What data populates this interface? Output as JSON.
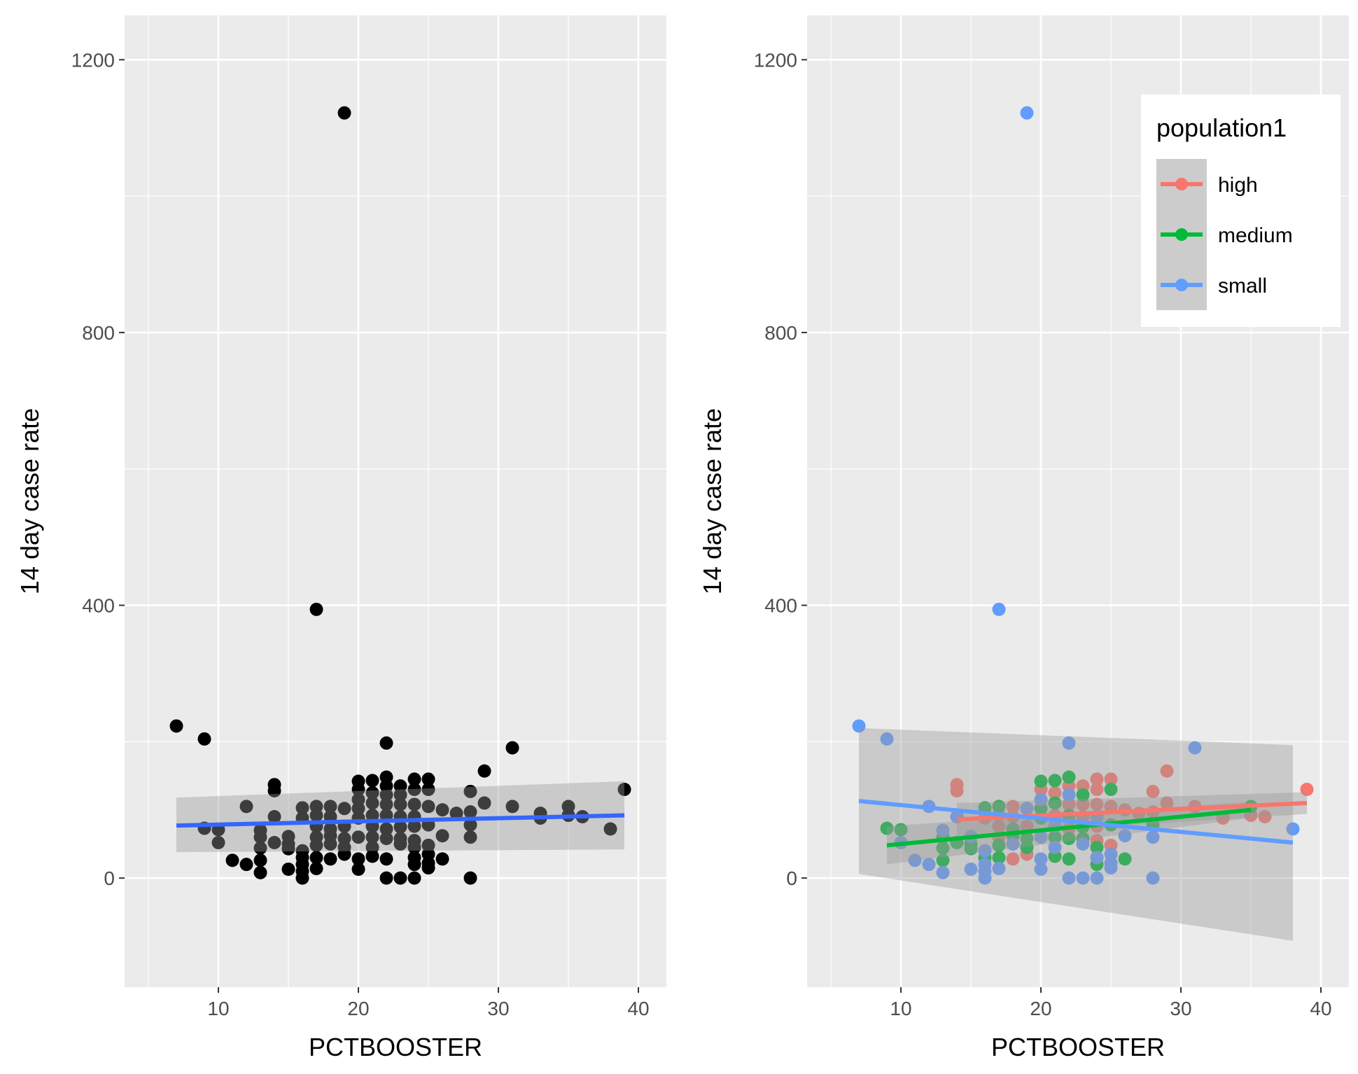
{
  "chart_data": [
    {
      "type": "scatter",
      "xlabel": "PCTBOOSTER",
      "ylabel": "14 day case rate",
      "xlim": [
        3.3,
        42
      ],
      "ylim": [
        -160,
        1265
      ],
      "x_ticks": [
        "10",
        "20",
        "30",
        "40"
      ],
      "y_ticks": [
        "0",
        "400",
        "800",
        "1200"
      ],
      "colors": {
        "points": "#000000",
        "line": "#3366FF",
        "band": "#999999",
        "panel": "#EBEBEB"
      },
      "series": [
        {
          "points": [
            [
              7,
              223
            ],
            [
              9,
              204
            ],
            [
              9,
              73
            ],
            [
              10,
              71
            ],
            [
              10,
              52
            ],
            [
              11,
              26
            ],
            [
              12,
              20
            ],
            [
              12,
              105
            ],
            [
              13,
              8
            ],
            [
              13,
              26
            ],
            [
              13,
              44
            ],
            [
              13,
              60
            ],
            [
              13,
              70
            ],
            [
              14,
              52
            ],
            [
              14,
              90
            ],
            [
              14,
              128
            ],
            [
              14,
              137
            ],
            [
              15,
              13
            ],
            [
              15,
              43
            ],
            [
              15,
              50
            ],
            [
              15,
              61
            ],
            [
              16,
              0
            ],
            [
              16,
              10
            ],
            [
              16,
              20
            ],
            [
              16,
              30
            ],
            [
              16,
              40
            ],
            [
              16,
              88
            ],
            [
              16,
              103
            ],
            [
              17,
              14
            ],
            [
              17,
              30
            ],
            [
              17,
              48
            ],
            [
              17,
              60
            ],
            [
              17,
              76
            ],
            [
              17,
              92
            ],
            [
              17,
              105
            ],
            [
              17,
              394
            ],
            [
              18,
              28
            ],
            [
              18,
              50
            ],
            [
              18,
              62
            ],
            [
              18,
              72
            ],
            [
              18,
              90
            ],
            [
              18,
              105
            ],
            [
              19,
              35
            ],
            [
              19,
              45
            ],
            [
              19,
              58
            ],
            [
              19,
              76
            ],
            [
              19,
              102
            ],
            [
              19,
              1122
            ],
            [
              20,
              13
            ],
            [
              20,
              28
            ],
            [
              20,
              60
            ],
            [
              20,
              88
            ],
            [
              20,
              102
            ],
            [
              20,
              115
            ],
            [
              20,
              130
            ],
            [
              20,
              142
            ],
            [
              21,
              32
            ],
            [
              21,
              45
            ],
            [
              21,
              60
            ],
            [
              21,
              76
            ],
            [
              21,
              92
            ],
            [
              21,
              110
            ],
            [
              21,
              125
            ],
            [
              21,
              143
            ],
            [
              22,
              0
            ],
            [
              22,
              28
            ],
            [
              22,
              58
            ],
            [
              22,
              72
            ],
            [
              22,
              92
            ],
            [
              22,
              108
            ],
            [
              22,
              122
            ],
            [
              22,
              135
            ],
            [
              22,
              148
            ],
            [
              22,
              198
            ],
            [
              23,
              0
            ],
            [
              23,
              50
            ],
            [
              23,
              58
            ],
            [
              23,
              75
            ],
            [
              23,
              90
            ],
            [
              23,
              108
            ],
            [
              23,
              122
            ],
            [
              23,
              135
            ],
            [
              24,
              0
            ],
            [
              24,
              20
            ],
            [
              24,
              30
            ],
            [
              24,
              45
            ],
            [
              24,
              55
            ],
            [
              24,
              76
            ],
            [
              24,
              90
            ],
            [
              24,
              108
            ],
            [
              24,
              130
            ],
            [
              24,
              145
            ],
            [
              25,
              15
            ],
            [
              25,
              22
            ],
            [
              25,
              35
            ],
            [
              25,
              48
            ],
            [
              25,
              78
            ],
            [
              25,
              105
            ],
            [
              25,
              130
            ],
            [
              25,
              145
            ],
            [
              26,
              28
            ],
            [
              26,
              62
            ],
            [
              26,
              100
            ],
            [
              27,
              95
            ],
            [
              28,
              0
            ],
            [
              28,
              60
            ],
            [
              28,
              78
            ],
            [
              28,
              97
            ],
            [
              28,
              127
            ],
            [
              29,
              110
            ],
            [
              29,
              157
            ],
            [
              31,
              105
            ],
            [
              31,
              191
            ],
            [
              33,
              88
            ],
            [
              33,
              95
            ],
            [
              35,
              92
            ],
            [
              35,
              105
            ],
            [
              36,
              90
            ],
            [
              38,
              72
            ],
            [
              39,
              130
            ]
          ]
        }
      ],
      "trend_lines": [
        {
          "x": [
            7,
            39
          ],
          "y": [
            77,
            92
          ],
          "band_upper": [
            118,
            142
          ],
          "band_lower": [
            38,
            42
          ],
          "color": "#3366FF"
        }
      ]
    },
    {
      "type": "scatter",
      "xlabel": "PCTBOOSTER",
      "ylabel": "14 day case rate",
      "xlim": [
        3.3,
        42
      ],
      "ylim": [
        -160,
        1265
      ],
      "x_ticks": [
        "10",
        "20",
        "30",
        "40"
      ],
      "y_ticks": [
        "0",
        "400",
        "800",
        "1200"
      ],
      "legend": {
        "title": "population1",
        "position": "top-right"
      },
      "colors": {
        "band": "#999999",
        "panel": "#EBEBEB"
      },
      "series": [
        {
          "name": "high",
          "color": "#F8766D",
          "points": [
            [
              14,
              128
            ],
            [
              14,
              137
            ],
            [
              14,
              90
            ],
            [
              15,
              60
            ],
            [
              16,
              88
            ],
            [
              17,
              76
            ],
            [
              17,
              92
            ],
            [
              17,
              105
            ],
            [
              17,
              60
            ],
            [
              18,
              105
            ],
            [
              18,
              90
            ],
            [
              18,
              28
            ],
            [
              19,
              102
            ],
            [
              19,
              76
            ],
            [
              19,
              35
            ],
            [
              20,
              115
            ],
            [
              20,
              130
            ],
            [
              21,
              125
            ],
            [
              21,
              143
            ],
            [
              21,
              92
            ],
            [
              22,
              135
            ],
            [
              22,
              108
            ],
            [
              22,
              72
            ],
            [
              23,
              135
            ],
            [
              23,
              108
            ],
            [
              23,
              90
            ],
            [
              24,
              145
            ],
            [
              24,
              130
            ],
            [
              24,
              108
            ],
            [
              24,
              76
            ],
            [
              24,
              55
            ],
            [
              25,
              145
            ],
            [
              25,
              105
            ],
            [
              25,
              48
            ],
            [
              26,
              100
            ],
            [
              27,
              95
            ],
            [
              28,
              127
            ],
            [
              28,
              97
            ],
            [
              29,
              157
            ],
            [
              29,
              110
            ],
            [
              31,
              105
            ],
            [
              33,
              88
            ],
            [
              35,
              92
            ],
            [
              36,
              90
            ],
            [
              39,
              130
            ]
          ],
          "trend": {
            "x": [
              14,
              39
            ],
            "y": [
              86,
              110
            ],
            "band_upper": [
              110,
              126
            ],
            "band_lower": [
              62,
              94
            ]
          }
        },
        {
          "name": "medium",
          "color": "#00BA38",
          "points": [
            [
              9,
              73
            ],
            [
              10,
              71
            ],
            [
              13,
              26
            ],
            [
              13,
              44
            ],
            [
              13,
              60
            ],
            [
              14,
              52
            ],
            [
              15,
              43
            ],
            [
              15,
              50
            ],
            [
              16,
              103
            ],
            [
              16,
              30
            ],
            [
              17,
              105
            ],
            [
              17,
              48
            ],
            [
              17,
              30
            ],
            [
              18,
              62
            ],
            [
              18,
              72
            ],
            [
              19,
              45
            ],
            [
              19,
              58
            ],
            [
              20,
              142
            ],
            [
              20,
              102
            ],
            [
              20,
              88
            ],
            [
              21,
              143
            ],
            [
              21,
              110
            ],
            [
              21,
              60
            ],
            [
              21,
              32
            ],
            [
              22,
              148
            ],
            [
              22,
              92
            ],
            [
              22,
              58
            ],
            [
              22,
              28
            ],
            [
              23,
              122
            ],
            [
              23,
              58
            ],
            [
              23,
              75
            ],
            [
              24,
              30
            ],
            [
              24,
              20
            ],
            [
              24,
              45
            ],
            [
              25,
              130
            ],
            [
              25,
              78
            ],
            [
              26,
              28
            ],
            [
              28,
              78
            ],
            [
              35,
              105
            ]
          ],
          "trend": {
            "x": [
              9,
              35
            ],
            "y": [
              48,
              100
            ],
            "band_upper": [
              76,
              112
            ],
            "band_lower": [
              20,
              88
            ]
          }
        },
        {
          "name": "small",
          "color": "#619CFF",
          "points": [
            [
              7,
              223
            ],
            [
              9,
              204
            ],
            [
              10,
              52
            ],
            [
              11,
              26
            ],
            [
              12,
              20
            ],
            [
              12,
              105
            ],
            [
              13,
              8
            ],
            [
              13,
              70
            ],
            [
              14,
              90
            ],
            [
              15,
              13
            ],
            [
              15,
              61
            ],
            [
              16,
              0
            ],
            [
              16,
              10
            ],
            [
              16,
              20
            ],
            [
              16,
              40
            ],
            [
              17,
              14
            ],
            [
              17,
              394
            ],
            [
              18,
              50
            ],
            [
              19,
              1122
            ],
            [
              19,
              102
            ],
            [
              20,
              13
            ],
            [
              20,
              28
            ],
            [
              20,
              60
            ],
            [
              20,
              115
            ],
            [
              21,
              45
            ],
            [
              21,
              76
            ],
            [
              22,
              0
            ],
            [
              22,
              122
            ],
            [
              22,
              198
            ],
            [
              23,
              0
            ],
            [
              23,
              50
            ],
            [
              24,
              0
            ],
            [
              24,
              30
            ],
            [
              24,
              90
            ],
            [
              25,
              15
            ],
            [
              25,
              22
            ],
            [
              25,
              35
            ],
            [
              26,
              62
            ],
            [
              28,
              0
            ],
            [
              28,
              60
            ],
            [
              31,
              191
            ],
            [
              38,
              72
            ]
          ],
          "trend": {
            "x": [
              7,
              38
            ],
            "y": [
              113,
              52
            ],
            "band_upper": [
              220,
              195
            ],
            "band_lower": [
              6,
              -92
            ]
          }
        }
      ]
    }
  ]
}
